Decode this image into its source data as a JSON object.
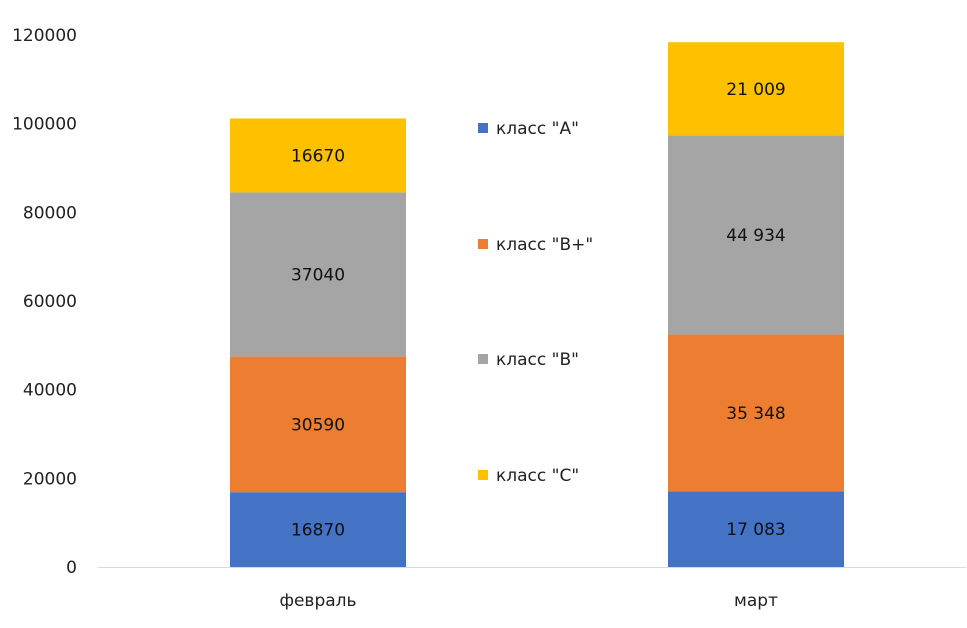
{
  "chart_data": {
    "type": "bar",
    "stacked": true,
    "title": "",
    "xlabel": "",
    "ylabel": "",
    "ylim": [
      0,
      120000
    ],
    "yticks": [
      "0",
      "20000",
      "40000",
      "60000",
      "80000",
      "100000",
      "120000"
    ],
    "grid": false,
    "legend_position": "center",
    "categories": [
      "февраль",
      "март"
    ],
    "series": [
      {
        "name": "класс \"A\"",
        "color": "#4472C4",
        "values": [
          16870,
          17083
        ],
        "labels": [
          "16870",
          "17 083"
        ]
      },
      {
        "name": "класс \"B+\"",
        "color": "#ED7D31",
        "values": [
          30590,
          35348
        ],
        "labels": [
          "30590",
          "35 348"
        ]
      },
      {
        "name": "класс \"B\"",
        "color": "#A5A5A5",
        "values": [
          37040,
          44934
        ],
        "labels": [
          "37040",
          "44 934"
        ]
      },
      {
        "name": "класс \"C\"",
        "color": "#FFC000",
        "values": [
          16670,
          21009
        ],
        "labels": [
          "16670",
          "21 009"
        ]
      }
    ]
  }
}
